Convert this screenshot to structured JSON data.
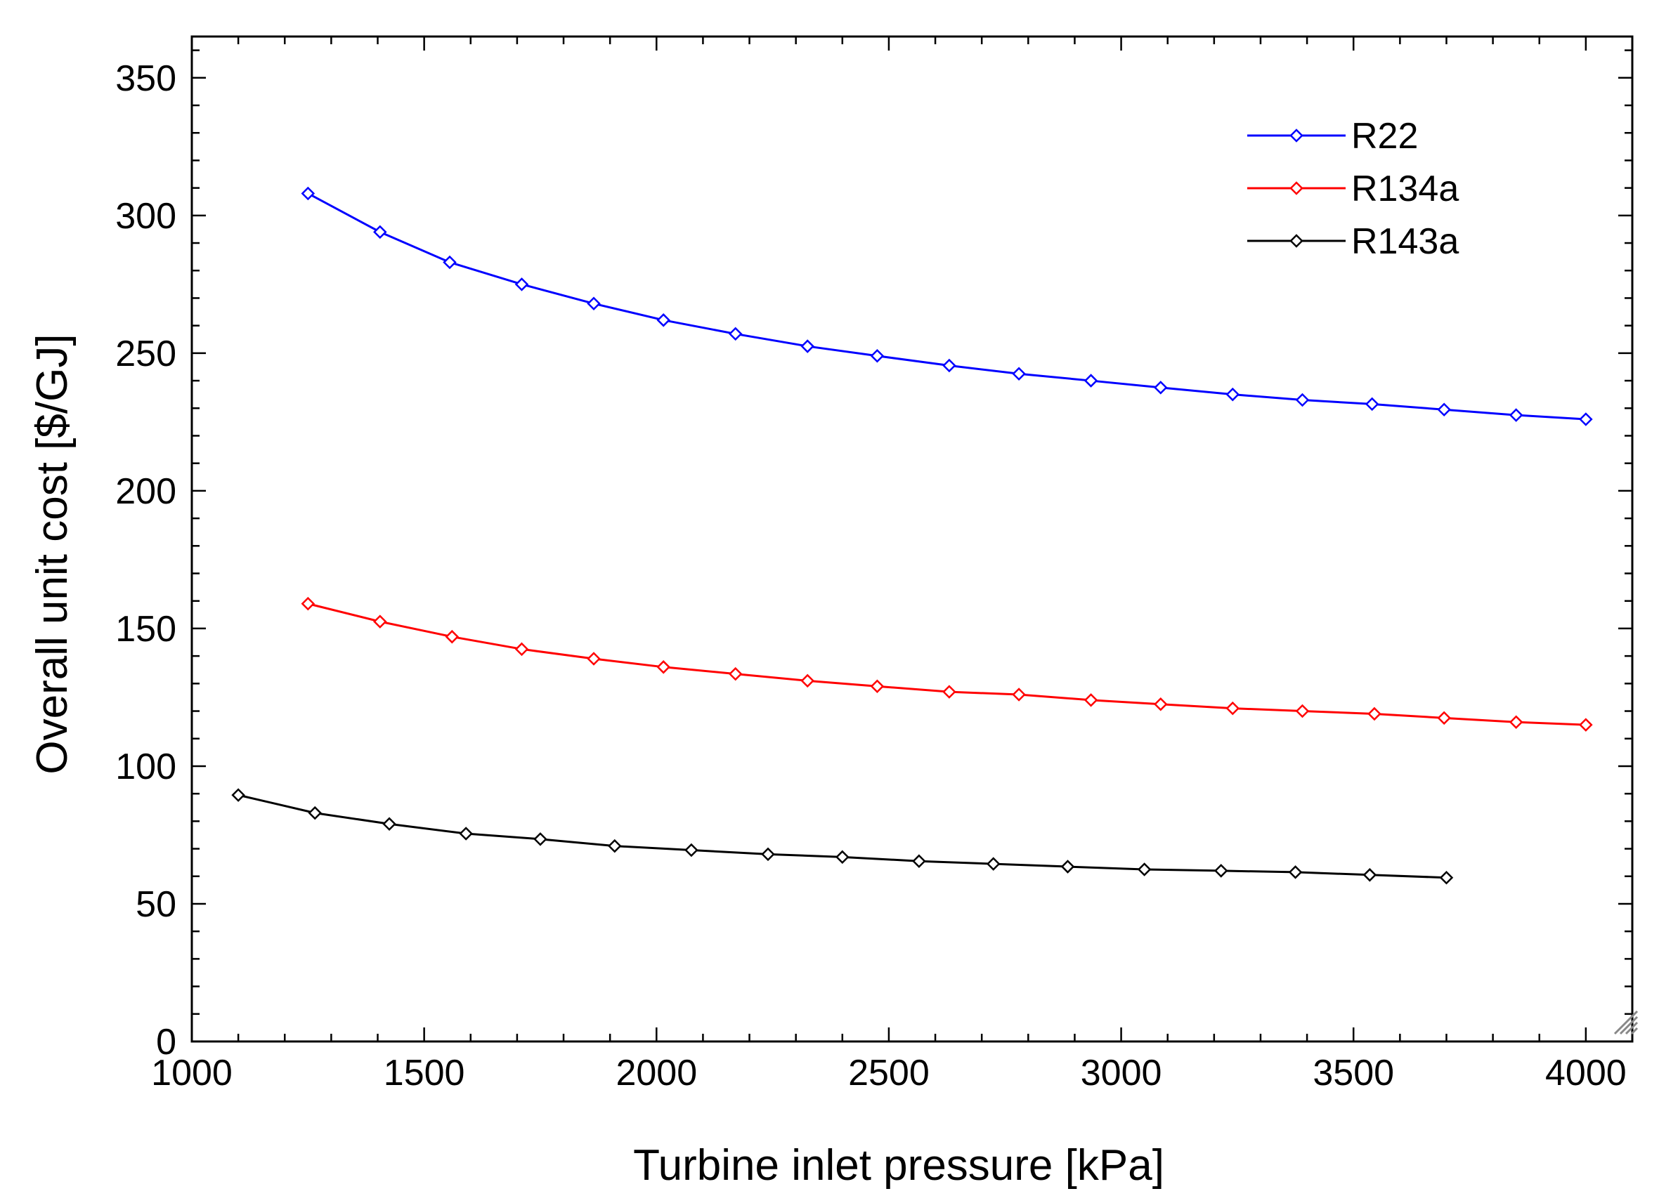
{
  "chart_data": {
    "type": "line",
    "title": "",
    "xlabel": "Turbine inlet pressure [kPa]",
    "ylabel": "Overall unit cost [$/GJ]",
    "xlim": [
      1000,
      4100
    ],
    "ylim": [
      0,
      365
    ],
    "xticks": [
      1000,
      1500,
      2000,
      2500,
      3000,
      3500,
      4000
    ],
    "yticks": [
      0,
      50,
      100,
      150,
      200,
      250,
      300,
      350
    ],
    "xtick_labels": [
      "1000",
      "1500",
      "2000",
      "2500",
      "3000",
      "3500",
      "4000"
    ],
    "ytick_labels": [
      "0",
      "50",
      "100",
      "150",
      "200",
      "250",
      "300",
      "350"
    ],
    "grid": false,
    "legend_position": "top-right",
    "series": [
      {
        "name": "R22",
        "color": "#0000ff",
        "marker": "diamond",
        "x": [
          1250,
          1405,
          1555,
          1710,
          1865,
          2015,
          2170,
          2325,
          2475,
          2630,
          2780,
          2935,
          3085,
          3240,
          3390,
          3540,
          3695,
          3850,
          4000
        ],
        "y": [
          308,
          294,
          283,
          275,
          268,
          262,
          257,
          252.5,
          249,
          245.5,
          242.5,
          240,
          237.5,
          235,
          233,
          231.5,
          229.5,
          227.5,
          226
        ]
      },
      {
        "name": "R134a",
        "color": "#ff0000",
        "marker": "diamond",
        "x": [
          1250,
          1405,
          1560,
          1710,
          1865,
          2015,
          2170,
          2325,
          2475,
          2630,
          2780,
          2935,
          3085,
          3240,
          3390,
          3545,
          3695,
          3850,
          4000
        ],
        "y": [
          159,
          152.5,
          147,
          142.5,
          139,
          136,
          133.5,
          131,
          129,
          127,
          126,
          124,
          122.5,
          121,
          120,
          119,
          117.5,
          116,
          115
        ]
      },
      {
        "name": "R143a",
        "color": "#000000",
        "marker": "diamond",
        "x": [
          1100,
          1265,
          1425,
          1590,
          1750,
          1910,
          2075,
          2240,
          2400,
          2565,
          2725,
          2885,
          3050,
          3215,
          3375,
          3535,
          3700
        ],
        "y": [
          89.5,
          83,
          79,
          75.5,
          73.5,
          71,
          69.5,
          68,
          67,
          65.5,
          64.5,
          63.5,
          62.5,
          62,
          61.5,
          60.5,
          59.5
        ]
      }
    ]
  }
}
